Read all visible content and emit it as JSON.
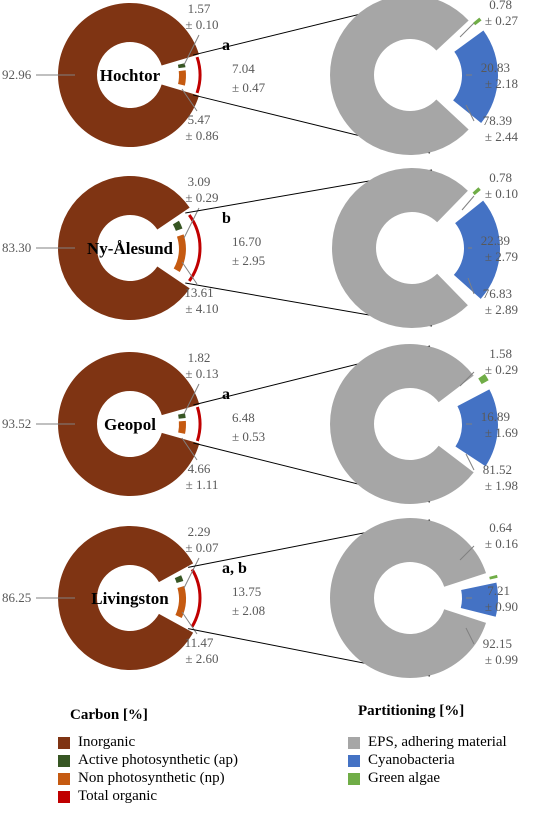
{
  "chart_data": {
    "type": "pie-of-pie",
    "legend_carbon": {
      "title": "Carbon [%]",
      "items": [
        {
          "label": "Inorganic",
          "color": "#7F3413"
        },
        {
          "label": "Active photosynthetic (ap)",
          "color": "#375623"
        },
        {
          "label": "Non photosynthetic (np)",
          "color": "#C55A11"
        },
        {
          "label": "Total organic",
          "color": "#C00000"
        }
      ]
    },
    "legend_partition": {
      "title": "Partitioning [%]",
      "items": [
        {
          "label": "EPS, adhering material",
          "color": "#A6A6A6"
        },
        {
          "label": "Cyanobacteria",
          "color": "#4472C4"
        },
        {
          "label": "Green algae",
          "color": "#70AD47"
        }
      ]
    },
    "sites": [
      {
        "name": "Hochtor",
        "inorganic": "92.96",
        "ap": [
          "1.57",
          "± 0.10"
        ],
        "np": [
          "5.47",
          "± 0.86"
        ],
        "total": [
          "7.04",
          "± 0.47"
        ],
        "letter": "a",
        "green": [
          "0.78",
          "± 0.27"
        ],
        "cyano": [
          "20.83",
          "± 2.18"
        ],
        "eps": [
          "78.39",
          "± 2.44"
        ]
      },
      {
        "name": "Ny-Ålesund",
        "inorganic": "83.30",
        "ap": [
          "3.09",
          "± 0.29"
        ],
        "np": [
          "13.61",
          "± 4.10"
        ],
        "total": [
          "16.70",
          "± 2.95"
        ],
        "letter": "b",
        "green": [
          "0.78",
          "± 0.10"
        ],
        "cyano": [
          "22.39",
          "± 2.79"
        ],
        "eps": [
          "76.83",
          "± 2.89"
        ]
      },
      {
        "name": "Geopol",
        "inorganic": "93.52",
        "ap": [
          "1.82",
          "± 0.13"
        ],
        "np": [
          "4.66",
          "± 1.11"
        ],
        "total": [
          "6.48",
          "± 0.53"
        ],
        "letter": "a",
        "green": [
          "1.58",
          "± 0.29"
        ],
        "cyano": [
          "16.89",
          "± 1.69"
        ],
        "eps": [
          "81.52",
          "± 1.98"
        ]
      },
      {
        "name": "Livingston",
        "inorganic": "86.25",
        "ap": [
          "2.29",
          "± 0.07"
        ],
        "np": [
          "11.47",
          "± 2.60"
        ],
        "total": [
          "13.75",
          "± 2.08"
        ],
        "letter": "a, b",
        "green": [
          "0.64",
          "± 0.16"
        ],
        "cyano": [
          "7.21",
          "± 0.90"
        ],
        "eps": [
          "92.15",
          "± 0.99"
        ]
      }
    ]
  }
}
